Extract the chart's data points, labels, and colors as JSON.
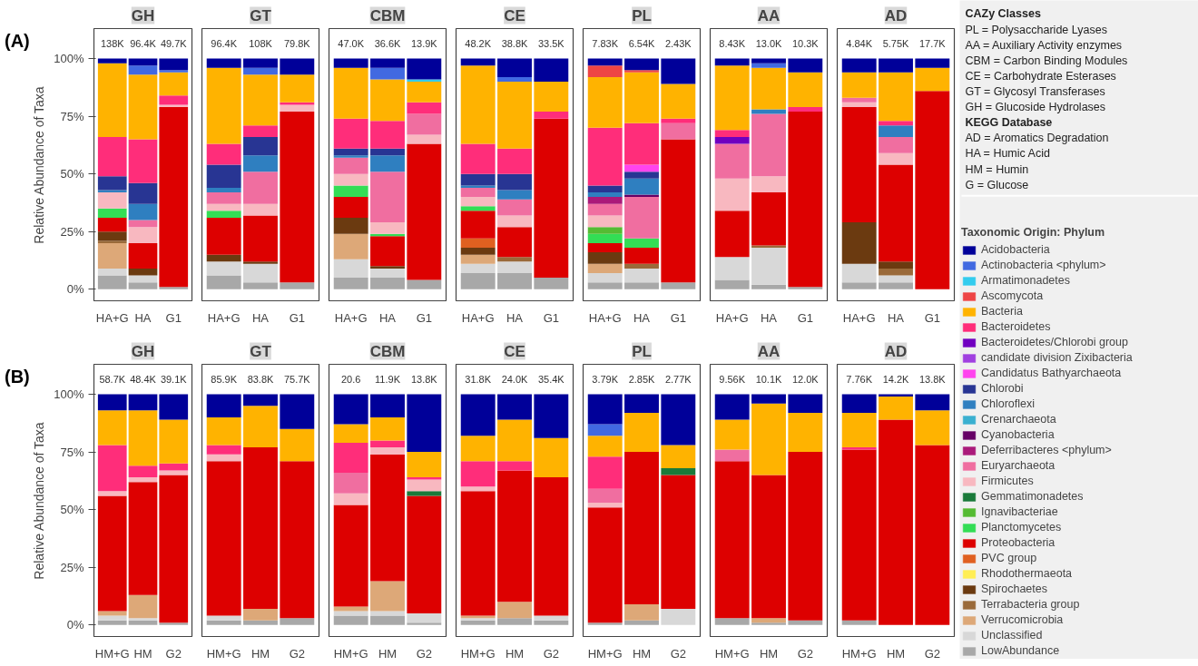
{
  "chart_data": [
    {
      "type": "bar",
      "stacked": true,
      "title": "GH",
      "ylabel": "Relative Abundance of Taxa",
      "categories": [
        "HA+G",
        "HA",
        "G1"
      ],
      "ylim": [
        -5,
        113
      ],
      "yticks": [
        {
          "value": 0,
          "label": "0%"
        },
        {
          "value": 25,
          "label": "25%"
        },
        {
          "value": 50,
          "label": "50%"
        },
        {
          "value": 75,
          "label": "75%"
        },
        {
          "value": 100,
          "label": "100%"
        }
      ],
      "annotations": [
        "(A)",
        "138K",
        "96.4K",
        "49.7K"
      ],
      "legend": "right",
      "legend_title": "Taxonomic Origin: Phylum",
      "series": [
        {
          "name": "LowAbundance",
          "color": "#a8a8a8",
          "values": [
            6,
            3,
            1
          ]
        },
        {
          "name": "Unclassified",
          "color": "#d8d8d8",
          "values": [
            3,
            3,
            0
          ]
        },
        {
          "name": "Verrucomicrobia",
          "color": "#dda878",
          "values": [
            11,
            0,
            0
          ]
        },
        {
          "name": "Terrabacteria group",
          "color": "#9a6a3a",
          "values": [
            1,
            0,
            0
          ]
        },
        {
          "name": "Spirochaetes",
          "color": "#6b3a10",
          "values": [
            4,
            3,
            0
          ]
        },
        {
          "name": "Proteobacteria",
          "color": "#dd0000",
          "values": [
            6,
            11,
            78
          ]
        },
        {
          "name": "Planctomycetes",
          "color": "#33dd55",
          "values": [
            4,
            0,
            0
          ]
        },
        {
          "name": "Firmicutes",
          "color": "#f8b8c0",
          "values": [
            7,
            7,
            1
          ]
        },
        {
          "name": "Euryarchaeota",
          "color": "#f06ea0",
          "values": [
            0,
            3,
            0
          ]
        },
        {
          "name": "Chloroflexi",
          "color": "#2f7fc0",
          "values": [
            1,
            7,
            0
          ]
        },
        {
          "name": "Chlorobi",
          "color": "#283593",
          "values": [
            6,
            9,
            0
          ]
        },
        {
          "name": "Bacteroidetes",
          "color": "#ff2d7a",
          "values": [
            17,
            19,
            4
          ]
        },
        {
          "name": "Bacteria",
          "color": "#ffb300",
          "values": [
            32,
            28,
            10
          ]
        },
        {
          "name": "Actinobacteria <phylum>",
          "color": "#4169e1",
          "values": [
            0,
            4,
            1
          ]
        },
        {
          "name": "Acidobacteria",
          "color": "#000099",
          "values": [
            2,
            3,
            5
          ]
        }
      ]
    },
    {
      "type": "bar",
      "stacked": true,
      "title": "GT",
      "legend": "right",
      "tick_labels": "x",
      "categories": [
        "HA+G",
        "HA",
        "G1"
      ],
      "ylim": [
        -5,
        113
      ],
      "annotations": [
        "96.4K",
        "108K",
        "79.8K"
      ],
      "series": [
        {
          "name": "LowAbundance",
          "color": "#a8a8a8",
          "values": [
            6,
            3,
            3
          ]
        },
        {
          "name": "Unclassified",
          "color": "#d8d8d8",
          "values": [
            6,
            8,
            0
          ]
        },
        {
          "name": "Spirochaetes",
          "color": "#6b3a10",
          "values": [
            3,
            1,
            0
          ]
        },
        {
          "name": "Proteobacteria",
          "color": "#dd0000",
          "values": [
            16,
            20,
            74
          ]
        },
        {
          "name": "Planctomycetes",
          "color": "#33dd55",
          "values": [
            3,
            0,
            0
          ]
        },
        {
          "name": "Firmicutes",
          "color": "#f8b8c0",
          "values": [
            3,
            5,
            3
          ]
        },
        {
          "name": "Euryarchaeota",
          "color": "#f06ea0",
          "values": [
            5,
            14,
            0
          ]
        },
        {
          "name": "Chloroflexi",
          "color": "#2f7fc0",
          "values": [
            2,
            7,
            0
          ]
        },
        {
          "name": "Chlorobi",
          "color": "#283593",
          "values": [
            10,
            8,
            0
          ]
        },
        {
          "name": "Bacteroidetes",
          "color": "#ff2d7a",
          "values": [
            9,
            5,
            1
          ]
        },
        {
          "name": "Bacteria",
          "color": "#ffb300",
          "values": [
            33,
            22,
            12
          ]
        },
        {
          "name": "Actinobacteria <phylum>",
          "color": "#4169e1",
          "values": [
            0,
            3,
            0
          ]
        },
        {
          "name": "Acidobacteria",
          "color": "#000099",
          "values": [
            4,
            4,
            7
          ]
        }
      ]
    },
    {
      "type": "bar",
      "stacked": true,
      "title": "CBM",
      "legend": "right",
      "tick_labels": "x",
      "categories": [
        "HA+G",
        "HA",
        "G1"
      ],
      "ylim": [
        -5,
        113
      ],
      "annotations": [
        "47.0K",
        "36.6K",
        "13.9K"
      ],
      "series": [
        {
          "name": "LowAbundance",
          "color": "#a8a8a8",
          "values": [
            5,
            5,
            4
          ]
        },
        {
          "name": "Unclassified",
          "color": "#d8d8d8",
          "values": [
            8,
            4,
            0
          ]
        },
        {
          "name": "Verrucomicrobia",
          "color": "#dda878",
          "values": [
            11,
            0,
            0
          ]
        },
        {
          "name": "Spirochaetes",
          "color": "#6b3a10",
          "values": [
            7,
            1,
            0
          ]
        },
        {
          "name": "Proteobacteria",
          "color": "#dd0000",
          "values": [
            9,
            13,
            59
          ]
        },
        {
          "name": "Planctomycetes",
          "color": "#33dd55",
          "values": [
            5,
            1,
            0
          ]
        },
        {
          "name": "Firmicutes",
          "color": "#f8b8c0",
          "values": [
            5,
            5,
            4
          ]
        },
        {
          "name": "Euryarchaeota",
          "color": "#f06ea0",
          "values": [
            7,
            22,
            9
          ]
        },
        {
          "name": "Chloroflexi",
          "color": "#2f7fc0",
          "values": [
            1,
            7,
            0
          ]
        },
        {
          "name": "Chlorobi",
          "color": "#283593",
          "values": [
            3,
            3,
            0
          ]
        },
        {
          "name": "Bacteroidetes",
          "color": "#ff2d7a",
          "values": [
            13,
            12,
            5
          ]
        },
        {
          "name": "Bacteria",
          "color": "#ffb300",
          "values": [
            22,
            18,
            9
          ]
        },
        {
          "name": "Armatimonadetes",
          "color": "#33ccee",
          "values": [
            0,
            0,
            1
          ]
        },
        {
          "name": "Actinobacteria <phylum>",
          "color": "#4169e1",
          "values": [
            0,
            5,
            0
          ]
        },
        {
          "name": "Acidobacteria",
          "color": "#000099",
          "values": [
            4,
            4,
            9
          ]
        }
      ]
    },
    {
      "type": "bar",
      "stacked": true,
      "title": "CE",
      "legend": "right",
      "tick_labels": "x",
      "categories": [
        "HA+G",
        "HA",
        "G1"
      ],
      "ylim": [
        -5,
        113
      ],
      "annotations": [
        "48.2K",
        "38.8K",
        "33.5K"
      ],
      "series": [
        {
          "name": "LowAbundance",
          "color": "#a8a8a8",
          "values": [
            7,
            7,
            5
          ]
        },
        {
          "name": "Unclassified",
          "color": "#d8d8d8",
          "values": [
            4,
            5,
            0
          ]
        },
        {
          "name": "Verrucomicrobia",
          "color": "#dda878",
          "values": [
            4,
            0,
            0
          ]
        },
        {
          "name": "Terrabacteria group",
          "color": "#9a6a3a",
          "values": [
            0,
            2,
            0
          ]
        },
        {
          "name": "Spirochaetes",
          "color": "#6b3a10",
          "values": [
            3,
            0,
            0
          ]
        },
        {
          "name": "Rhodothermaeota",
          "color": "#ffee55",
          "values": [
            0,
            0,
            0
          ]
        },
        {
          "name": "PVC group",
          "color": "#e06020",
          "values": [
            4,
            0,
            0
          ]
        },
        {
          "name": "Proteobacteria",
          "color": "#dd0000",
          "values": [
            12,
            13,
            69
          ]
        },
        {
          "name": "Planctomycetes",
          "color": "#33dd55",
          "values": [
            2,
            0,
            0
          ]
        },
        {
          "name": "Firmicutes",
          "color": "#f8b8c0",
          "values": [
            4,
            5,
            0
          ]
        },
        {
          "name": "Euryarchaeota",
          "color": "#f06ea0",
          "values": [
            4,
            7,
            0
          ]
        },
        {
          "name": "Chloroflexi",
          "color": "#2f7fc0",
          "values": [
            1,
            4,
            0
          ]
        },
        {
          "name": "Chlorobi",
          "color": "#283593",
          "values": [
            5,
            7,
            0
          ]
        },
        {
          "name": "Bacteroidetes",
          "color": "#ff2d7a",
          "values": [
            13,
            11,
            3
          ]
        },
        {
          "name": "Bacteria",
          "color": "#ffb300",
          "values": [
            34,
            29,
            13
          ]
        },
        {
          "name": "Actinobacteria <phylum>",
          "color": "#4169e1",
          "values": [
            0,
            2,
            0
          ]
        },
        {
          "name": "Acidobacteria",
          "color": "#000099",
          "values": [
            3,
            8,
            10
          ]
        }
      ]
    },
    {
      "type": "bar",
      "stacked": true,
      "title": "PL",
      "legend": "right",
      "tick_labels": "x",
      "categories": [
        "HA+G",
        "HA",
        "G1"
      ],
      "ylim": [
        -5,
        113
      ],
      "annotations": [
        "7.83K",
        "6.54K",
        "2.43K"
      ],
      "series": [
        {
          "name": "LowAbundance",
          "color": "#a8a8a8",
          "values": [
            3,
            3,
            3
          ]
        },
        {
          "name": "Unclassified",
          "color": "#d8d8d8",
          "values": [
            4,
            6,
            0
          ]
        },
        {
          "name": "Verrucomicrobia",
          "color": "#dda878",
          "values": [
            4,
            0,
            0
          ]
        },
        {
          "name": "Terrabacteria group",
          "color": "#9a6a3a",
          "values": [
            0,
            2,
            0
          ]
        },
        {
          "name": "Spirochaetes",
          "color": "#6b3a10",
          "values": [
            5,
            0,
            0
          ]
        },
        {
          "name": "Proteobacteria",
          "color": "#dd0000",
          "values": [
            4,
            7,
            62
          ]
        },
        {
          "name": "Planctomycetes",
          "color": "#33dd55",
          "values": [
            4,
            4,
            0
          ]
        },
        {
          "name": "Ignavibacteriae",
          "color": "#55bb33",
          "values": [
            3,
            0,
            0
          ]
        },
        {
          "name": "Firmicutes",
          "color": "#f8b8c0",
          "values": [
            5,
            0,
            0
          ]
        },
        {
          "name": "Euryarchaeota",
          "color": "#f06ea0",
          "values": [
            5,
            18,
            7
          ]
        },
        {
          "name": "Deferribacteres <phylum>",
          "color": "#aa1a7a",
          "values": [
            3,
            0,
            0
          ]
        },
        {
          "name": "Cyanobacteria",
          "color": "#660066",
          "values": [
            0,
            1,
            0
          ]
        },
        {
          "name": "Crenarchaeota",
          "color": "#3ab0d0",
          "values": [
            0,
            0,
            0
          ]
        },
        {
          "name": "Chloroflexi",
          "color": "#2f7fc0",
          "values": [
            2,
            7,
            0
          ]
        },
        {
          "name": "Chlorobi",
          "color": "#283593",
          "values": [
            3,
            3,
            0
          ]
        },
        {
          "name": "Candidatus Bathyarchaeota",
          "color": "#ff44ee",
          "values": [
            0,
            3,
            0
          ]
        },
        {
          "name": "candidate division Zixibacteria",
          "color": "#a040e0",
          "values": [
            0,
            0,
            0
          ]
        },
        {
          "name": "Bacteroidetes",
          "color": "#ff2d7a",
          "values": [
            25,
            18,
            2
          ]
        },
        {
          "name": "Bacteria",
          "color": "#ffb300",
          "values": [
            22,
            22,
            15
          ]
        },
        {
          "name": "Ascomycota",
          "color": "#ee4444",
          "values": [
            5,
            1,
            0
          ]
        },
        {
          "name": "Armatimonadetes",
          "color": "#33ccee",
          "values": [
            0,
            0,
            0
          ]
        },
        {
          "name": "Acidobacteria",
          "color": "#000099",
          "values": [
            3,
            5,
            11
          ]
        }
      ]
    },
    {
      "type": "bar",
      "stacked": true,
      "title": "AA",
      "legend": "right",
      "tick_labels": "x",
      "categories": [
        "HA+G",
        "HA",
        "G1"
      ],
      "ylim": [
        -5,
        113
      ],
      "annotations": [
        "8.43K",
        "13.0K",
        "10.3K"
      ],
      "series": [
        {
          "name": "LowAbundance",
          "color": "#a8a8a8",
          "values": [
            4,
            2,
            1
          ]
        },
        {
          "name": "Unclassified",
          "color": "#d8d8d8",
          "values": [
            10,
            16,
            0
          ]
        },
        {
          "name": "Terrabacteria group",
          "color": "#9a6a3a",
          "values": [
            0,
            1,
            0
          ]
        },
        {
          "name": "Proteobacteria",
          "color": "#dd0000",
          "values": [
            20,
            23,
            76
          ]
        },
        {
          "name": "Firmicutes",
          "color": "#f8b8c0",
          "values": [
            14,
            7,
            0
          ]
        },
        {
          "name": "Euryarchaeota",
          "color": "#f06ea0",
          "values": [
            15,
            27,
            0
          ]
        },
        {
          "name": "Chloroflexi",
          "color": "#2f7fc0",
          "values": [
            0,
            2,
            0
          ]
        },
        {
          "name": "Bacteroidetes/Chlorobi group",
          "color": "#7000c0",
          "values": [
            3,
            0,
            0
          ]
        },
        {
          "name": "Bacteroidetes",
          "color": "#ff2d7a",
          "values": [
            3,
            0,
            2
          ]
        },
        {
          "name": "Bacteria",
          "color": "#ffb300",
          "values": [
            28,
            18,
            15
          ]
        },
        {
          "name": "Actinobacteria <phylum>",
          "color": "#4169e1",
          "values": [
            0,
            2,
            0
          ]
        },
        {
          "name": "Acidobacteria",
          "color": "#000099",
          "values": [
            3,
            2,
            6
          ]
        }
      ]
    },
    {
      "type": "bar",
      "stacked": true,
      "title": "AD",
      "legend": "right",
      "tick_labels": "x",
      "categories": [
        "HA+G",
        "HA",
        "G1"
      ],
      "ylim": [
        -5,
        113
      ],
      "annotations": [
        "4.84K",
        "5.75K",
        "17.7K"
      ],
      "series": [
        {
          "name": "LowAbundance",
          "color": "#a8a8a8",
          "values": [
            3,
            3,
            0
          ]
        },
        {
          "name": "Unclassified",
          "color": "#d8d8d8",
          "values": [
            8,
            3,
            0
          ]
        },
        {
          "name": "Terrabacteria group",
          "color": "#9a6a3a",
          "values": [
            0,
            3,
            0
          ]
        },
        {
          "name": "Spirochaetes",
          "color": "#6b3a10",
          "values": [
            18,
            3,
            0
          ]
        },
        {
          "name": "Proteobacteria",
          "color": "#dd0000",
          "values": [
            50,
            42,
            86
          ]
        },
        {
          "name": "Firmicutes",
          "color": "#f8b8c0",
          "values": [
            2,
            5,
            0
          ]
        },
        {
          "name": "Euryarchaeota",
          "color": "#f06ea0",
          "values": [
            2,
            7,
            0
          ]
        },
        {
          "name": "Chloroflexi",
          "color": "#2f7fc0",
          "values": [
            0,
            5,
            0
          ]
        },
        {
          "name": "Bacteroidetes",
          "color": "#ff2d7a",
          "values": [
            0,
            2,
            0
          ]
        },
        {
          "name": "Bacteria",
          "color": "#ffb300",
          "values": [
            11,
            21,
            10
          ]
        },
        {
          "name": "Acidobacteria",
          "color": "#000099",
          "values": [
            6,
            6,
            4
          ]
        }
      ]
    },
    {
      "type": "bar",
      "stacked": true,
      "title": "GH",
      "legend": "right",
      "ylabel": "Relative Abundance of Taxa",
      "categories": [
        "HM+G",
        "HM",
        "G2"
      ],
      "ylim": [
        -5,
        113
      ],
      "yticks": [
        {
          "value": 0,
          "label": "0%"
        },
        {
          "value": 25,
          "label": "25%"
        },
        {
          "value": 50,
          "label": "50%"
        },
        {
          "value": 75,
          "label": "75%"
        },
        {
          "value": 100,
          "label": "100%"
        }
      ],
      "annotations": [
        "(B)",
        "58.7K",
        "48.4K",
        "39.1K"
      ],
      "series": [
        {
          "name": "LowAbundance",
          "color": "#a8a8a8",
          "values": [
            2,
            2,
            1
          ]
        },
        {
          "name": "Unclassified",
          "color": "#d8d8d8",
          "values": [
            2,
            1,
            0
          ]
        },
        {
          "name": "Verrucomicrobia",
          "color": "#dda878",
          "values": [
            2,
            10,
            0
          ]
        },
        {
          "name": "Proteobacteria",
          "color": "#dd0000",
          "values": [
            50,
            49,
            64
          ]
        },
        {
          "name": "Firmicutes",
          "color": "#f8b8c0",
          "values": [
            2,
            2,
            2
          ]
        },
        {
          "name": "Bacteroidetes",
          "color": "#ff2d7a",
          "values": [
            20,
            5,
            3
          ]
        },
        {
          "name": "Bacteria",
          "color": "#ffb300",
          "values": [
            15,
            24,
            19
          ]
        },
        {
          "name": "Acidobacteria",
          "color": "#000099",
          "values": [
            7,
            7,
            11
          ]
        }
      ]
    },
    {
      "type": "bar",
      "stacked": true,
      "title": "GT",
      "legend": "right",
      "tick_labels": "x",
      "categories": [
        "HM+G",
        "HM",
        "G2"
      ],
      "ylim": [
        -5,
        113
      ],
      "annotations": [
        "85.9K",
        "83.8K",
        "75.7K"
      ],
      "series": [
        {
          "name": "LowAbundance",
          "color": "#a8a8a8",
          "values": [
            2,
            2,
            3
          ]
        },
        {
          "name": "Unclassified",
          "color": "#d8d8d8",
          "values": [
            2,
            0,
            0
          ]
        },
        {
          "name": "Verrucomicrobia",
          "color": "#dda878",
          "values": [
            0,
            5,
            0
          ]
        },
        {
          "name": "Proteobacteria",
          "color": "#dd0000",
          "values": [
            67,
            70,
            68
          ]
        },
        {
          "name": "Firmicutes",
          "color": "#f8b8c0",
          "values": [
            3,
            0,
            0
          ]
        },
        {
          "name": "Bacteroidetes",
          "color": "#ff2d7a",
          "values": [
            4,
            0,
            0
          ]
        },
        {
          "name": "Bacteria",
          "color": "#ffb300",
          "values": [
            12,
            18,
            14
          ]
        },
        {
          "name": "Acidobacteria",
          "color": "#000099",
          "values": [
            10,
            5,
            15
          ]
        }
      ]
    },
    {
      "type": "bar",
      "stacked": true,
      "title": "CBM",
      "legend": "right",
      "tick_labels": "x",
      "categories": [
        "HM+G",
        "HM",
        "G2"
      ],
      "ylim": [
        -5,
        113
      ],
      "annotations": [
        "20.6",
        "11.9K",
        "13.8K"
      ],
      "series": [
        {
          "name": "LowAbundance",
          "color": "#a8a8a8",
          "values": [
            4,
            4,
            1
          ]
        },
        {
          "name": "Unclassified",
          "color": "#d8d8d8",
          "values": [
            2,
            2,
            4
          ]
        },
        {
          "name": "Verrucomicrobia",
          "color": "#dda878",
          "values": [
            2,
            13,
            0
          ]
        },
        {
          "name": "Proteobacteria",
          "color": "#dd0000",
          "values": [
            44,
            55,
            51
          ]
        },
        {
          "name": "Gemmatimonadetes",
          "color": "#1a7a3a",
          "values": [
            0,
            0,
            2
          ]
        },
        {
          "name": "Firmicutes",
          "color": "#f8b8c0",
          "values": [
            5,
            3,
            5
          ]
        },
        {
          "name": "Euryarchaeota",
          "color": "#f06ea0",
          "values": [
            9,
            0,
            0
          ]
        },
        {
          "name": "Bacteroidetes",
          "color": "#ff2d7a",
          "values": [
            13,
            3,
            1
          ]
        },
        {
          "name": "Bacteria",
          "color": "#ffb300",
          "values": [
            8,
            10,
            11
          ]
        },
        {
          "name": "Acidobacteria",
          "color": "#000099",
          "values": [
            13,
            10,
            25
          ]
        }
      ]
    },
    {
      "type": "bar",
      "stacked": true,
      "title": "CE",
      "legend": "right",
      "tick_labels": "x",
      "categories": [
        "HM+G",
        "HM",
        "G2"
      ],
      "ylim": [
        -5,
        113
      ],
      "annotations": [
        "31.8K",
        "24.0K",
        "35.4K"
      ],
      "series": [
        {
          "name": "LowAbundance",
          "color": "#a8a8a8",
          "values": [
            2,
            3,
            2
          ]
        },
        {
          "name": "Unclassified",
          "color": "#d8d8d8",
          "values": [
            1,
            0,
            2
          ]
        },
        {
          "name": "Verrucomicrobia",
          "color": "#dda878",
          "values": [
            1,
            7,
            0
          ]
        },
        {
          "name": "Proteobacteria",
          "color": "#dd0000",
          "values": [
            54,
            57,
            60
          ]
        },
        {
          "name": "Firmicutes",
          "color": "#f8b8c0",
          "values": [
            2,
            0,
            0
          ]
        },
        {
          "name": "Bacteroidetes",
          "color": "#ff2d7a",
          "values": [
            11,
            4,
            0
          ]
        },
        {
          "name": "Bacteria",
          "color": "#ffb300",
          "values": [
            11,
            18,
            17
          ]
        },
        {
          "name": "Acidobacteria",
          "color": "#000099",
          "values": [
            18,
            11,
            19
          ]
        }
      ]
    },
    {
      "type": "bar",
      "stacked": true,
      "title": "PL",
      "legend": "right",
      "tick_labels": "x",
      "categories": [
        "HM+G",
        "HM",
        "G2"
      ],
      "ylim": [
        -5,
        113
      ],
      "annotations": [
        "3.79K",
        "2.85K",
        "2.77K"
      ],
      "series": [
        {
          "name": "LowAbundance",
          "color": "#a8a8a8",
          "values": [
            1,
            2,
            0
          ]
        },
        {
          "name": "Unclassified",
          "color": "#d8d8d8",
          "values": [
            0,
            0,
            7
          ]
        },
        {
          "name": "Verrucomicrobia",
          "color": "#dda878",
          "values": [
            0,
            7,
            0
          ]
        },
        {
          "name": "Proteobacteria",
          "color": "#dd0000",
          "values": [
            50,
            66,
            58
          ]
        },
        {
          "name": "Gemmatimonadetes",
          "color": "#1a7a3a",
          "values": [
            0,
            0,
            3
          ]
        },
        {
          "name": "Firmicutes",
          "color": "#f8b8c0",
          "values": [
            2,
            0,
            0
          ]
        },
        {
          "name": "Euryarchaeota",
          "color": "#f06ea0",
          "values": [
            6,
            0,
            0
          ]
        },
        {
          "name": "Bacteroidetes",
          "color": "#ff2d7a",
          "values": [
            14,
            0,
            0
          ]
        },
        {
          "name": "Bacteria",
          "color": "#ffb300",
          "values": [
            9,
            17,
            10
          ]
        },
        {
          "name": "Actinobacteria <phylum>",
          "color": "#4169e1",
          "values": [
            5,
            0,
            0
          ]
        },
        {
          "name": "Acidobacteria",
          "color": "#000099",
          "values": [
            13,
            8,
            22
          ]
        }
      ]
    },
    {
      "type": "bar",
      "stacked": true,
      "title": "AA",
      "legend": "right",
      "tick_labels": "x",
      "categories": [
        "HM+G",
        "HM",
        "G2"
      ],
      "ylim": [
        -5,
        113
      ],
      "annotations": [
        "9.56K",
        "10.1K",
        "12.0K"
      ],
      "series": [
        {
          "name": "LowAbundance",
          "color": "#a8a8a8",
          "values": [
            3,
            1,
            2
          ]
        },
        {
          "name": "Verrucomicrobia",
          "color": "#dda878",
          "values": [
            0,
            2,
            0
          ]
        },
        {
          "name": "Proteobacteria",
          "color": "#dd0000",
          "values": [
            68,
            62,
            73
          ]
        },
        {
          "name": "Euryarchaeota",
          "color": "#f06ea0",
          "values": [
            5,
            0,
            0
          ]
        },
        {
          "name": "Bacteria",
          "color": "#ffb300",
          "values": [
            13,
            31,
            17
          ]
        },
        {
          "name": "Acidobacteria",
          "color": "#000099",
          "values": [
            11,
            4,
            8
          ]
        }
      ]
    },
    {
      "type": "bar",
      "stacked": true,
      "title": "AD",
      "legend": "right",
      "tick_labels": "x",
      "categories": [
        "HM+G",
        "HM",
        "G2"
      ],
      "ylim": [
        -5,
        113
      ],
      "annotations": [
        "7.76K",
        "14.2K",
        "13.8K"
      ],
      "series": [
        {
          "name": "LowAbundance",
          "color": "#a8a8a8",
          "values": [
            2,
            0,
            0
          ]
        },
        {
          "name": "Proteobacteria",
          "color": "#dd0000",
          "values": [
            74,
            89,
            78
          ]
        },
        {
          "name": "Bacteroidetes",
          "color": "#ff2d7a",
          "values": [
            1,
            0,
            0
          ]
        },
        {
          "name": "Bacteria",
          "color": "#ffb300",
          "values": [
            15,
            10,
            15
          ]
        },
        {
          "name": "Acidobacteria",
          "color": "#000099",
          "values": [
            8,
            1,
            7
          ]
        }
      ]
    },
    {
      "type": "other",
      "title": "CAZy Classes",
      "annotations": [
        "PL = Polysaccharide Lyases",
        "AA = Auxiliary Activity enzymes",
        "CBM = Carbon Binding Modules",
        "CE = Carbohydrate Esterases",
        "GT = Glycosyl Transferases",
        "GH = Glucoside Hydrolases"
      ]
    },
    {
      "type": "other",
      "title": "KEGG Database",
      "annotations": [
        "AD = Aromatics Degradation"
      ]
    },
    {
      "type": "other",
      "annotations": [
        "HA = Humic Acid",
        "HM = Humin",
        "G = Glucose"
      ]
    }
  ]
}
